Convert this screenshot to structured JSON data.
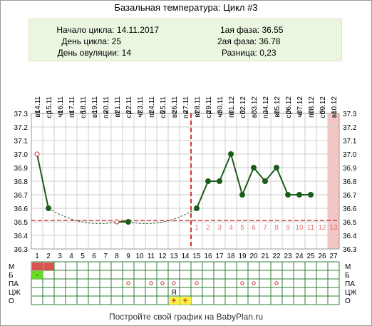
{
  "header": {
    "title": "Базальная температура: Цикл #3"
  },
  "info": {
    "start_label": "Начало цикла:",
    "start_value": "14.11.2017",
    "day_label": "День цикла:",
    "day_value": "25",
    "ovulation_label": "День овуляции:",
    "ovulation_value": "14",
    "phase1_label": "1ая фаза:",
    "phase1_value": "36.55",
    "phase2_label": "2ая фаза:",
    "phase2_value": "36.78",
    "diff_label": "Разница:",
    "diff_value": "0,23"
  },
  "footer": {
    "text": "Постройте свой график на BabyPlan.ru"
  },
  "chart_data": {
    "type": "line",
    "title": "",
    "ylim": [
      36.3,
      37.3
    ],
    "y_ticks": [
      "36.3",
      "36.4",
      "36.5",
      "36.6",
      "36.7",
      "36.8",
      "36.9",
      "37.0",
      "37.1",
      "37.2",
      "37.3"
    ],
    "days": [
      1,
      2,
      3,
      4,
      5,
      6,
      7,
      8,
      9,
      10,
      11,
      12,
      13,
      14,
      15,
      16,
      17,
      18,
      19,
      20,
      21,
      22,
      23,
      24,
      25,
      26,
      27
    ],
    "dates": [
      "14.11",
      "15.11",
      "16.11",
      "17.11",
      "18.11",
      "19.11",
      "20.11",
      "21.11",
      "22.11",
      "23.11",
      "24.11",
      "25.11",
      "26.11",
      "27.11",
      "28.11",
      "29.11",
      "30.11",
      "01.12",
      "02.12",
      "03.12",
      "04.12",
      "05.12",
      "06.12",
      "07.12",
      "08.12",
      "09.12",
      "10.12"
    ],
    "weekdays": [
      "вт",
      "ср",
      "чт",
      "пт",
      "сб",
      "вс",
      "пн",
      "вт",
      "ср",
      "чт",
      "пт",
      "сб",
      "вс",
      "пн",
      "вт",
      "ср",
      "чт",
      "пт",
      "сб",
      "вс",
      "пн",
      "вт",
      "ср",
      "чт",
      "пт",
      "сб",
      "вс"
    ],
    "temps": [
      37.0,
      36.6,
      null,
      null,
      null,
      null,
      null,
      36.5,
      36.5,
      null,
      null,
      null,
      null,
      null,
      36.6,
      36.8,
      36.8,
      37.0,
      36.7,
      36.9,
      36.8,
      36.9,
      36.7,
      36.7,
      36.7,
      null,
      null
    ],
    "open_points": [
      1,
      8
    ],
    "ovulation_day": 14,
    "coverline": 36.51,
    "phase_day_numbers": [
      "1",
      "2",
      "3",
      "4",
      "5",
      "6",
      "7",
      "8",
      "9",
      "10",
      "11",
      "12",
      "13"
    ],
    "highlight_day": 27,
    "grid_row_labels": [
      "М",
      "Б",
      "ПА",
      "ЦЖ",
      "О"
    ],
    "marks": {
      "M": [
        1,
        2
      ],
      "B": [
        1
      ],
      "B_symbol": "-",
      "PA": [
        9,
        11,
        12,
        13,
        15,
        19,
        20,
        22
      ],
      "PA_symbol": "o",
      "CJ": [
        {
          "day": 13,
          "text": "Я"
        }
      ],
      "O": [
        {
          "day": 13,
          "text": "+"
        },
        {
          "day": 14,
          "text": "+"
        }
      ]
    },
    "colors": {
      "line": "#1a5c1a",
      "ovulation": "#cc0000",
      "coverline": "#d02020",
      "highlight": "#f5c4c4",
      "menstruation": "#d9534f",
      "b_mark": "#66dd22",
      "o_mark": "#ffee44",
      "grid": "#2e7d32"
    }
  }
}
